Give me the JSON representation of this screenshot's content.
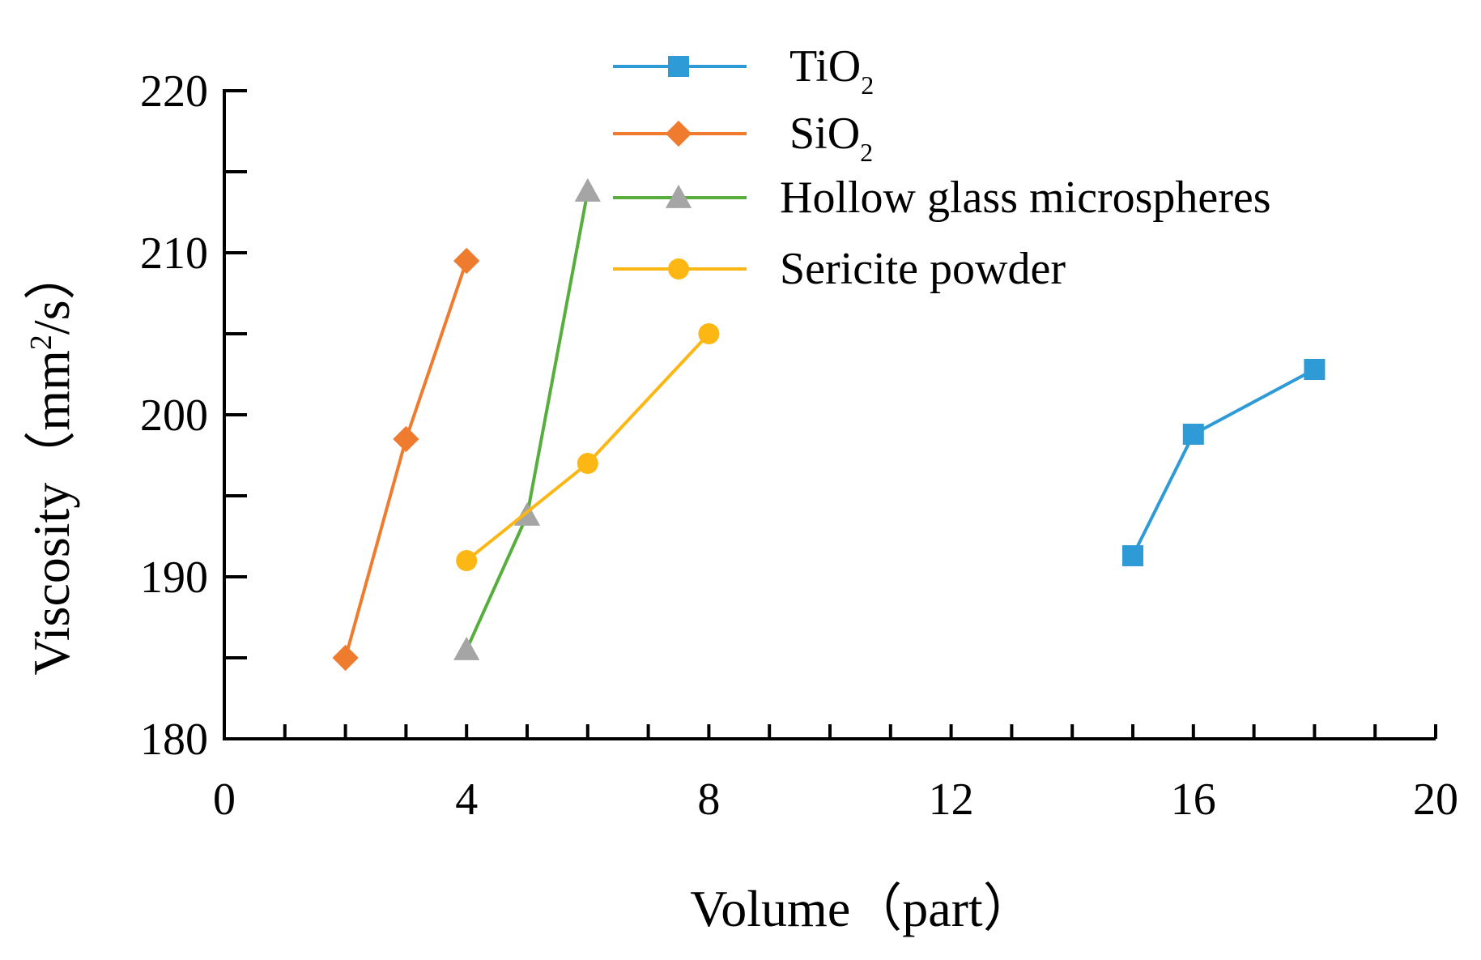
{
  "chart_data": {
    "type": "line",
    "title": "",
    "xlabel": "Volume（part）",
    "ylabel_main": "Viscosity（mm",
    "ylabel_sup": "2",
    "ylabel_end": "/s）",
    "xlim": [
      0,
      20
    ],
    "ylim": [
      180,
      220
    ],
    "xticks": [
      0,
      4,
      8,
      12,
      16,
      20
    ],
    "yticks": [
      180,
      190,
      200,
      210,
      220
    ],
    "x_minor_step": 1,
    "y_minor_step": 5,
    "grid": false,
    "legend_position": "top",
    "series": [
      {
        "name": "TiO2",
        "label_main": "TiO",
        "label_sub": "2",
        "color": "#2E9AD6",
        "marker": "square",
        "x": [
          15,
          16,
          18
        ],
        "y": [
          191.3,
          198.8,
          202.8
        ]
      },
      {
        "name": "SiO2",
        "label_main": "SiO",
        "label_sub": "2",
        "color": "#EF7B2F",
        "marker": "diamond",
        "x": [
          2,
          3,
          4
        ],
        "y": [
          185,
          198.5,
          209.5
        ]
      },
      {
        "name": "Hollow glass microspheres",
        "label_main": "Hollow glass microspheres",
        "label_sub": "",
        "color": "#57AE3D",
        "marker_color": "#A5A5A5",
        "marker": "triangle",
        "x": [
          4,
          5,
          6
        ],
        "y": [
          185.5,
          193.8,
          213.8
        ]
      },
      {
        "name": "Sericite powder",
        "label_main": "Sericite powder",
        "label_sub": "",
        "color": "#FDB714",
        "marker": "circle",
        "x": [
          4,
          6,
          8
        ],
        "y": [
          191,
          197,
          205
        ]
      }
    ]
  }
}
